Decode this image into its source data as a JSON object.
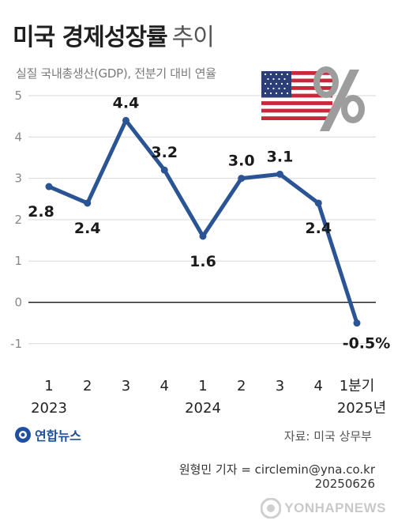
{
  "title_bold": "미국 경제성장률",
  "title_light": "추이",
  "subtitle": "실질 국내총생산(GDP), 전분기 대비 연율",
  "source": "자료: 미국 상무부",
  "reporter": "원형민 기자 = circlemin@yna.co.kr",
  "date_code": "20250626",
  "logo_text": "연합뉴스",
  "watermark_text": "YONHAPNEWS",
  "colors": {
    "line": "#2a5494",
    "grid": "#d9d9d9",
    "zero": "#222222",
    "axis_text": "#888888"
  },
  "chart_data": {
    "type": "line",
    "title": "미국 경제성장률 추이",
    "subtitle": "실질 국내총생산(GDP), 전분기 대비 연율",
    "categories": [
      "1",
      "2",
      "3",
      "4",
      "1",
      "2",
      "3",
      "4",
      "1분기"
    ],
    "year_labels": [
      {
        "label": "2023",
        "index": 0
      },
      {
        "label": "2024",
        "index": 4
      },
      {
        "label": "2025년",
        "index": 8
      }
    ],
    "values": [
      2.8,
      2.4,
      4.4,
      3.2,
      1.6,
      3.0,
      3.1,
      2.4,
      -0.5
    ],
    "value_labels": [
      "2.8",
      "2.4",
      "4.4",
      "3.2",
      "1.6",
      "3.0",
      "3.1",
      "2.4",
      "-0.5%"
    ],
    "label_position": [
      "below",
      "below",
      "above",
      "above",
      "below",
      "above",
      "above",
      "below",
      "below"
    ],
    "y_ticks": [
      5,
      4,
      3,
      2,
      1,
      0,
      -1
    ],
    "ylim": [
      -1,
      5
    ],
    "grid": true,
    "xlabel": "",
    "ylabel": ""
  }
}
